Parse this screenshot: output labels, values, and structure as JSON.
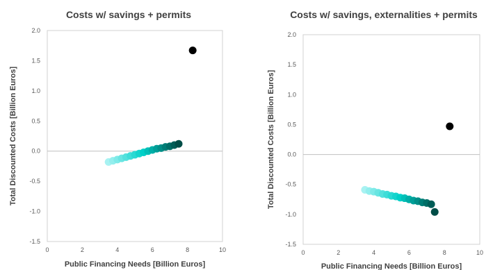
{
  "chart_data": [
    {
      "type": "scatter",
      "title": "Costs w/ savings + permits",
      "xlabel": "Public Financing Needs [Billion Euros]",
      "ylabel": "Total Discounted Costs [Billion Euros]",
      "xlim": [
        0,
        10
      ],
      "ylim": [
        -1.5,
        2.0
      ],
      "xticks": [
        "0",
        "2",
        "4",
        "6",
        "8",
        "10"
      ],
      "yticks": [
        "2.0",
        "1.5",
        "1.0",
        "0.5",
        "0.0",
        "-0.5",
        "-1.0",
        "-1.5"
      ],
      "grid": false,
      "colors": {
        "light": "#a8f2f2",
        "mid": "#00d0c8",
        "dark": "#004d47",
        "highlight": "#000000"
      },
      "series": [
        {
          "x": [
            3.5,
            3.75,
            4.0,
            4.25,
            4.5,
            4.75,
            5.0,
            5.25,
            5.5,
            5.75,
            6.0,
            6.25,
            6.5,
            6.75,
            7.0,
            7.25,
            7.5
          ],
          "y": [
            -0.18,
            -0.16,
            -0.14,
            -0.12,
            -0.1,
            -0.08,
            -0.06,
            -0.04,
            -0.02,
            0.0,
            0.02,
            0.04,
            0.05,
            0.07,
            0.08,
            0.1,
            0.12
          ]
        },
        {
          "x": [
            8.3
          ],
          "y": [
            1.67
          ],
          "highlight": true
        }
      ]
    },
    {
      "type": "scatter",
      "title": "Costs w/ savings, externalities + permits",
      "xlabel": "Public Financing Needs [Billion Euros]",
      "ylabel": "Total Discounted Costs [Billion Euros]",
      "xlim": [
        0,
        10
      ],
      "ylim": [
        -1.5,
        2.0
      ],
      "xticks": [
        "0",
        "2",
        "4",
        "6",
        "8",
        "10"
      ],
      "yticks": [
        "2.0",
        "1.5",
        "1.0",
        "0.5",
        "0.0",
        "-0.5",
        "-1.0",
        "-1.5"
      ],
      "grid": false,
      "colors": {
        "light": "#a8f2f2",
        "mid": "#00d0c8",
        "dark": "#004d47",
        "highlight": "#000000"
      },
      "series": [
        {
          "x": [
            3.5,
            3.75,
            4.0,
            4.25,
            4.5,
            4.75,
            5.0,
            5.25,
            5.5,
            5.75,
            6.0,
            6.25,
            6.5,
            6.75,
            7.0,
            7.25,
            7.45
          ],
          "y": [
            -0.59,
            -0.61,
            -0.62,
            -0.64,
            -0.66,
            -0.67,
            -0.69,
            -0.7,
            -0.72,
            -0.73,
            -0.75,
            -0.77,
            -0.78,
            -0.8,
            -0.81,
            -0.83,
            -0.96
          ]
        },
        {
          "x": [
            8.3
          ],
          "y": [
            0.47
          ],
          "highlight": true
        }
      ]
    }
  ]
}
